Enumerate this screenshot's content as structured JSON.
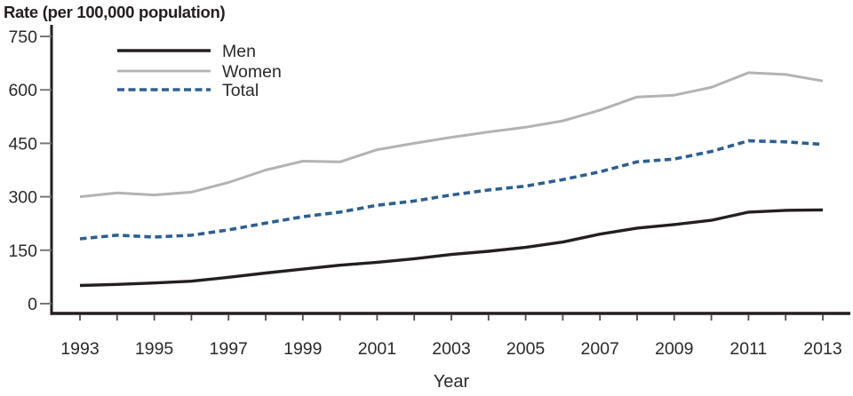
{
  "chart_data": {
    "type": "line",
    "y_axis_title": "Rate (per 100,000 population)",
    "xlabel": "Year",
    "x": [
      1993,
      1994,
      1995,
      1996,
      1997,
      1998,
      1999,
      2000,
      2001,
      2002,
      2003,
      2004,
      2005,
      2006,
      2007,
      2008,
      2009,
      2010,
      2011,
      2012,
      2013
    ],
    "xtick_labels": [
      1993,
      1995,
      1997,
      1999,
      2001,
      2003,
      2005,
      2007,
      2009,
      2011,
      2013
    ],
    "yticks": [
      0,
      150,
      300,
      450,
      600,
      750
    ],
    "ylim": [
      0,
      750
    ],
    "xlim": [
      1993,
      2013
    ],
    "grid": false,
    "legend_position": "top-left-inside",
    "series": [
      {
        "name": "Men",
        "style": "solid",
        "color": "#231f20",
        "values": [
          51,
          54,
          58,
          63,
          74,
          86,
          97,
          108,
          116,
          126,
          138,
          147,
          158,
          173,
          195,
          212,
          222,
          234,
          257,
          262,
          263
        ]
      },
      {
        "name": "Women",
        "style": "solid",
        "color": "#b3b3b6",
        "values": [
          300,
          311,
          305,
          313,
          340,
          375,
          400,
          398,
          432,
          450,
          467,
          482,
          495,
          513,
          543,
          580,
          585,
          607,
          648,
          643,
          625
        ]
      },
      {
        "name": "Total",
        "style": "dashed",
        "color": "#2c5f94",
        "values": [
          182,
          192,
          187,
          192,
          207,
          226,
          244,
          257,
          276,
          288,
          305,
          319,
          330,
          348,
          370,
          398,
          406,
          427,
          457,
          454,
          447
        ]
      }
    ],
    "colors": {
      "axis": "#231f20",
      "y_tick": "#77787b",
      "x_tick": "#4d4d4f",
      "text": "#231f20"
    }
  }
}
